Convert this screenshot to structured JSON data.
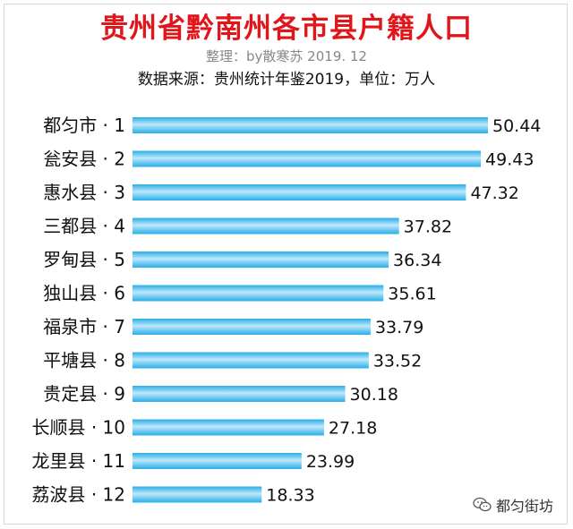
{
  "chart_data": {
    "type": "bar",
    "orientation": "horizontal",
    "title": "贵州省黔南州各市县户籍人口",
    "subtitle": "整理：by散寒苏 2019. 12",
    "source_note": "数据来源：贵州统计年鉴2019，单位：万人",
    "categories": [
      "都匀市 · 1",
      "瓮安县 · 2",
      "惠水县 · 3",
      "三都县 · 4",
      "罗甸县 · 5",
      "独山县 · 6",
      "福泉市 · 7",
      "平塘县 · 8",
      "贵定县 · 9",
      "长顺县 · 10",
      "龙里县 · 11",
      "荔波县 · 12"
    ],
    "values": [
      50.44,
      49.43,
      47.32,
      37.82,
      36.34,
      35.61,
      33.79,
      33.52,
      30.18,
      27.18,
      23.99,
      18.33
    ],
    "value_labels": [
      "50.44",
      "49.43",
      "47.32",
      "37.82",
      "36.34",
      "35.61",
      "33.79",
      "33.52",
      "30.18",
      "27.18",
      "23.99",
      "18.33"
    ],
    "xlim": [
      0,
      50.44
    ],
    "grid": false,
    "bar_color": "#27aee8",
    "bar_highlight_color": "#bfe8fb"
  },
  "watermark": {
    "text": "都匀街坊",
    "icon": "wechat-icon"
  }
}
